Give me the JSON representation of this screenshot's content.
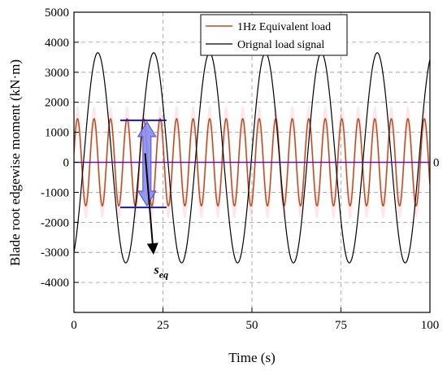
{
  "chart_data": {
    "type": "line",
    "xlabel": "Time (s)",
    "ylabel": "Blade root edgewise moment (kN·m)",
    "xlim": [
      0,
      100
    ],
    "ylim": [
      -5000,
      5000
    ],
    "x_ticks": [
      0,
      25,
      50,
      75,
      100
    ],
    "y_ticks": [
      -4000,
      -3000,
      -2000,
      -1000,
      0,
      1000,
      2000,
      3000,
      4000,
      5000
    ],
    "grid": true,
    "legend_position": "top-right",
    "series": [
      {
        "name": "1Hz Equivalent load",
        "kind": "sine",
        "amplitude": 1450,
        "mean": 0,
        "period": 4.64,
        "phase_peak_at": 1.0,
        "x_range": [
          0,
          100
        ],
        "color": "#b5501e"
      },
      {
        "name": "Orignal load signal",
        "kind": "sine",
        "amplitude": 3500,
        "mean": 150,
        "period": 15.7,
        "phase_peak_at": 6.7,
        "x_range": [
          0,
          100
        ],
        "color": "#000000"
      }
    ],
    "reference_lines": [
      {
        "y": 0,
        "color": "#6a0dad",
        "label": "0"
      },
      {
        "y": 1400,
        "x_range": [
          13,
          26
        ],
        "color": "#1a1aa8"
      },
      {
        "y": -1500,
        "x_range": [
          13,
          26
        ],
        "color": "#1a1aa8"
      }
    ],
    "annotations": [
      {
        "text": "s",
        "subscript": "eq",
        "x": 22.5,
        "y": -3550
      }
    ],
    "colors": {
      "equivalent": "#b5501e",
      "original": "#000000",
      "zero_line": "#6a0dad",
      "range_lines": "#1a1aa8",
      "range_arrow": "#8a8cf0",
      "shading": "#fde3ea",
      "grid": "#9a9a9a"
    }
  }
}
